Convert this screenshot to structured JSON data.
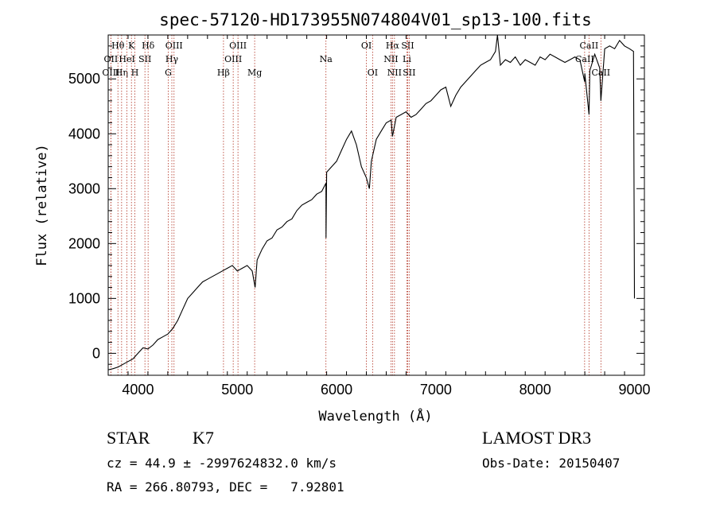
{
  "chart_data": {
    "type": "line",
    "title": "spec-57120-HD173955N074804V01_sp13-100.fits",
    "xlabel": "Wavelength (Å)",
    "ylabel": "Flux (relative)",
    "xlim": [
      3700,
      9100
    ],
    "ylim": [
      -400,
      5800
    ],
    "xticks": [
      4000,
      5000,
      6000,
      7000,
      8000,
      9000
    ],
    "yticks": [
      0,
      1000,
      2000,
      3000,
      4000,
      5000
    ],
    "grid": false,
    "series": [
      {
        "name": "flux",
        "x": [
          3700,
          3750,
          3800,
          3850,
          3900,
          3950,
          4000,
          4050,
          4100,
          4150,
          4200,
          4250,
          4300,
          4350,
          4400,
          4450,
          4500,
          4550,
          4600,
          4650,
          4700,
          4750,
          4800,
          4850,
          4900,
          4950,
          5000,
          5050,
          5100,
          5150,
          5180,
          5200,
          5250,
          5300,
          5350,
          5400,
          5450,
          5500,
          5550,
          5600,
          5650,
          5700,
          5750,
          5800,
          5850,
          5893,
          5894,
          5900,
          5950,
          6000,
          6050,
          6100,
          6150,
          6200,
          6250,
          6300,
          6330,
          6350,
          6400,
          6450,
          6500,
          6550,
          6563,
          6600,
          6650,
          6700,
          6750,
          6800,
          6850,
          6900,
          6950,
          7000,
          7050,
          7100,
          7150,
          7200,
          7250,
          7300,
          7350,
          7400,
          7450,
          7500,
          7550,
          7600,
          7620,
          7650,
          7700,
          7750,
          7800,
          7850,
          7900,
          7950,
          8000,
          8050,
          8100,
          8150,
          8200,
          8250,
          8300,
          8350,
          8400,
          8450,
          8498,
          8500,
          8542,
          8550,
          8600,
          8650,
          8662,
          8700,
          8750,
          8800,
          8850,
          8900,
          8950,
          8990,
          9000
        ],
        "y": [
          -300,
          -280,
          -250,
          -200,
          -150,
          -100,
          0,
          100,
          80,
          150,
          250,
          300,
          350,
          450,
          600,
          800,
          1000,
          1100,
          1200,
          1300,
          1350,
          1400,
          1450,
          1500,
          1550,
          1600,
          1500,
          1550,
          1600,
          1500,
          1200,
          1700,
          1900,
          2050,
          2100,
          2250,
          2300,
          2400,
          2450,
          2600,
          2700,
          2750,
          2800,
          2900,
          2950,
          3100,
          2100,
          3300,
          3400,
          3500,
          3700,
          3900,
          4050,
          3800,
          3400,
          3200,
          3000,
          3500,
          3900,
          4050,
          4200,
          4250,
          3950,
          4300,
          4350,
          4400,
          4300,
          4350,
          4450,
          4550,
          4600,
          4700,
          4800,
          4850,
          4500,
          4700,
          4850,
          4950,
          5050,
          5150,
          5250,
          5300,
          5350,
          5500,
          5800,
          5250,
          5350,
          5300,
          5400,
          5250,
          5350,
          5300,
          5250,
          5400,
          5350,
          5450,
          5400,
          5350,
          5300,
          5350,
          5400,
          5350,
          4950,
          5100,
          4350,
          5150,
          5450,
          5200,
          4600,
          5550,
          5600,
          5550,
          5700,
          5600,
          5550,
          5500,
          1000
        ]
      }
    ],
    "lines": [
      {
        "name": "Hθ",
        "x": 3798,
        "row": 1
      },
      {
        "name": "OII",
        "x": 3727,
        "row": 2
      },
      {
        "name": "OIII",
        "x": 3727,
        "row": 3
      },
      {
        "name": "Hη",
        "x": 3835,
        "row": 3
      },
      {
        "name": "K",
        "x": 3934,
        "row": 1
      },
      {
        "name": "HeI",
        "x": 3889,
        "row": 2
      },
      {
        "name": "H",
        "x": 3969,
        "row": 3
      },
      {
        "name": "Hδ",
        "x": 4102,
        "row": 1
      },
      {
        "name": "SII",
        "x": 4070,
        "row": 2
      },
      {
        "name": "OIII",
        "x": 4363,
        "row": 1
      },
      {
        "name": "Hγ",
        "x": 4341,
        "row": 2
      },
      {
        "name": "G",
        "x": 4305,
        "row": 3
      },
      {
        "name": "OIII",
        "x": 5007,
        "row": 1
      },
      {
        "name": "OIII",
        "x": 4959,
        "row": 2
      },
      {
        "name": "Hβ",
        "x": 4861,
        "row": 3
      },
      {
        "name": "Mg",
        "x": 5175,
        "row": 3
      },
      {
        "name": "Na",
        "x": 5893,
        "row": 2
      },
      {
        "name": "OI",
        "x": 6300,
        "row": 1
      },
      {
        "name": "OI",
        "x": 6363,
        "row": 3
      },
      {
        "name": "Hα",
        "x": 6563,
        "row": 1
      },
      {
        "name": "SII",
        "x": 6716,
        "row": 1
      },
      {
        "name": "NII",
        "x": 6548,
        "row": 2
      },
      {
        "name": "Li",
        "x": 6708,
        "row": 2
      },
      {
        "name": "NII",
        "x": 6583,
        "row": 3
      },
      {
        "name": "SII",
        "x": 6731,
        "row": 3
      },
      {
        "name": "CaII",
        "x": 8542,
        "row": 1
      },
      {
        "name": "CaII",
        "x": 8498,
        "row": 2
      },
      {
        "name": "CaII",
        "x": 8662,
        "row": 3
      }
    ]
  },
  "info": {
    "class": "STAR",
    "subclass": "K7",
    "survey": "LAMOST DR3",
    "cz": "cz = 44.9 ± -2997624832.0 km/s",
    "obs_date": "Obs-Date: 20150407",
    "coords": "RA = 266.80793, DEC =   7.92801"
  }
}
